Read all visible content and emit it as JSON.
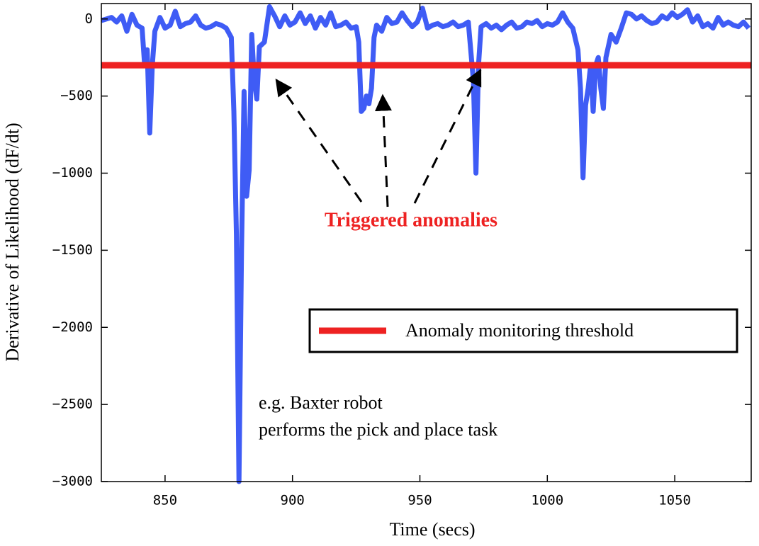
{
  "chart_data": {
    "type": "line",
    "xlabel": "Time (secs)",
    "ylabel": "Derivative of Likelihood (dF/dt)",
    "xlim": [
      825,
      1080
    ],
    "ylim": [
      -3000,
      100
    ],
    "xticks": [
      850,
      900,
      950,
      1000,
      1050
    ],
    "yticks": [
      0,
      {
        "value": -500,
        "label": "−500"
      },
      {
        "value": -1000,
        "label": "−1000"
      },
      {
        "value": -1500,
        "label": "−1500"
      },
      {
        "value": -2000,
        "label": "−2000"
      },
      {
        "value": -2500,
        "label": "−2500"
      },
      {
        "value": -3000,
        "label": "−3000"
      }
    ],
    "x": [
      825,
      827,
      829,
      831,
      833,
      835,
      837,
      839,
      841,
      842,
      843,
      844,
      845,
      846,
      848,
      850,
      852,
      854,
      856,
      858,
      860,
      862,
      864,
      866,
      868,
      870,
      872,
      874,
      876,
      877,
      878,
      879,
      880,
      881,
      882,
      883,
      884,
      885,
      886,
      887,
      889,
      891,
      893,
      895,
      897,
      899,
      901,
      903,
      905,
      907,
      909,
      911,
      913,
      915,
      917,
      919,
      921,
      923,
      925,
      926,
      927,
      928,
      929,
      930,
      931,
      932,
      933,
      935,
      937,
      939,
      941,
      943,
      945,
      947,
      949,
      951,
      953,
      955,
      957,
      959,
      961,
      963,
      965,
      967,
      969,
      971,
      972,
      973,
      974,
      976,
      978,
      980,
      982,
      984,
      986,
      988,
      990,
      992,
      994,
      996,
      998,
      1000,
      1002,
      1004,
      1006,
      1008,
      1010,
      1012,
      1013,
      1014,
      1015,
      1016,
      1017,
      1018,
      1019,
      1020,
      1021,
      1022,
      1023,
      1025,
      1027,
      1029,
      1031,
      1033,
      1035,
      1037,
      1039,
      1041,
      1043,
      1045,
      1047,
      1049,
      1051,
      1053,
      1055,
      1057,
      1059,
      1061,
      1063,
      1065,
      1067,
      1069,
      1071,
      1073,
      1075,
      1077,
      1079
    ],
    "series": [
      {
        "color": "#3f5cf5",
        "values": [
          -10,
          0,
          10,
          -20,
          20,
          -80,
          30,
          -40,
          -60,
          -300,
          -200,
          -740,
          -300,
          -80,
          10,
          -60,
          -40,
          50,
          -50,
          -30,
          -20,
          20,
          -40,
          -60,
          -50,
          -30,
          -40,
          -60,
          -120,
          -600,
          -1400,
          -3000,
          -1500,
          -470,
          -1150,
          -980,
          -100,
          -400,
          -520,
          -180,
          -150,
          80,
          20,
          -50,
          20,
          -40,
          -20,
          40,
          -30,
          20,
          -60,
          10,
          -40,
          40,
          -50,
          -40,
          -20,
          -60,
          -50,
          -150,
          -600,
          -580,
          -500,
          -550,
          -450,
          -120,
          -40,
          -80,
          10,
          -30,
          -20,
          40,
          -10,
          -50,
          -20,
          70,
          -60,
          -40,
          -30,
          -50,
          -40,
          -20,
          -50,
          -40,
          -20,
          -400,
          -1000,
          -300,
          -50,
          -30,
          -60,
          -40,
          -70,
          -40,
          -20,
          -60,
          -50,
          -20,
          -30,
          -10,
          -50,
          -30,
          -40,
          -20,
          40,
          -20,
          -60,
          -200,
          -450,
          -1030,
          -560,
          -450,
          -300,
          -600,
          -300,
          -250,
          -450,
          -580,
          -250,
          -100,
          -150,
          -60,
          40,
          30,
          0,
          20,
          -10,
          -30,
          -20,
          20,
          0,
          40,
          10,
          30,
          60,
          -20,
          20,
          -50,
          -30,
          -60,
          10,
          -40,
          -20,
          -40,
          -50,
          -20,
          -60
        ]
      }
    ],
    "threshold": {
      "name": "Anomaly monitoring threshold",
      "value": -300,
      "color": "#ee2222"
    },
    "annotations": [
      "Triggered anomalies",
      "e.g. Baxter robot",
      "performs the pick and place task"
    ]
  }
}
